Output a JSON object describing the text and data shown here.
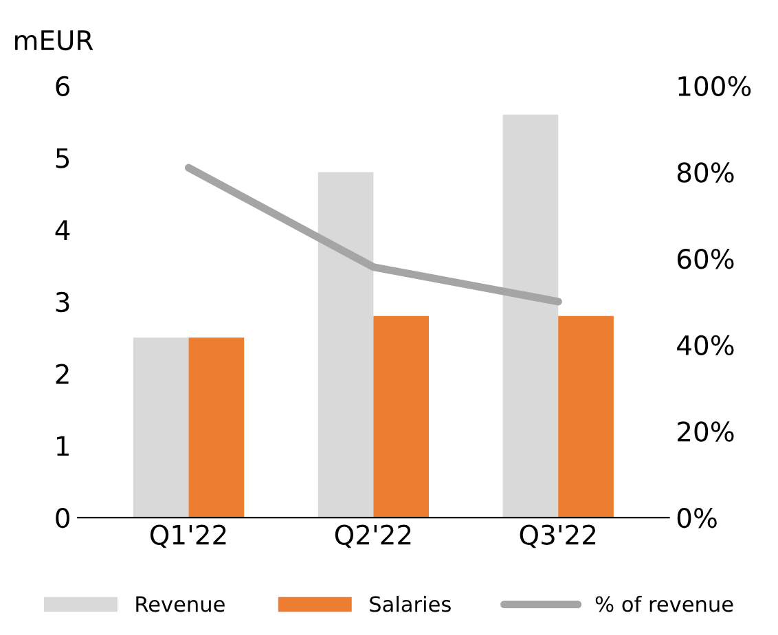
{
  "chart_data": {
    "type": "bar",
    "ylabel": "mEUR",
    "categories": [
      "Q1'22",
      "Q2'22",
      "Q3'22"
    ],
    "series": [
      {
        "name": "Revenue",
        "color": "#d9d9d9",
        "values": [
          2.5,
          4.8,
          5.6
        ]
      },
      {
        "name": "Salaries",
        "color": "#ed7d31",
        "values": [
          2.5,
          2.8,
          2.8
        ]
      },
      {
        "name": "% of revenue",
        "type": "line",
        "axis": "y2",
        "color": "#a5a5a5",
        "values": [
          81,
          58,
          50
        ]
      }
    ],
    "ylim": [
      0,
      6
    ],
    "yticks": [
      0,
      1,
      2,
      3,
      4,
      5,
      6
    ],
    "y2lim": [
      0,
      100
    ],
    "y2ticks": [
      {
        "value": 0,
        "label": "0%"
      },
      {
        "value": 20,
        "label": "20%"
      },
      {
        "value": 40,
        "label": "40%"
      },
      {
        "value": 60,
        "label": "60%"
      },
      {
        "value": 80,
        "label": "80%"
      },
      {
        "value": 100,
        "label": "100%"
      }
    ],
    "legend": "bottom",
    "marker": "none",
    "line_style": "solid",
    "grid": false
  }
}
